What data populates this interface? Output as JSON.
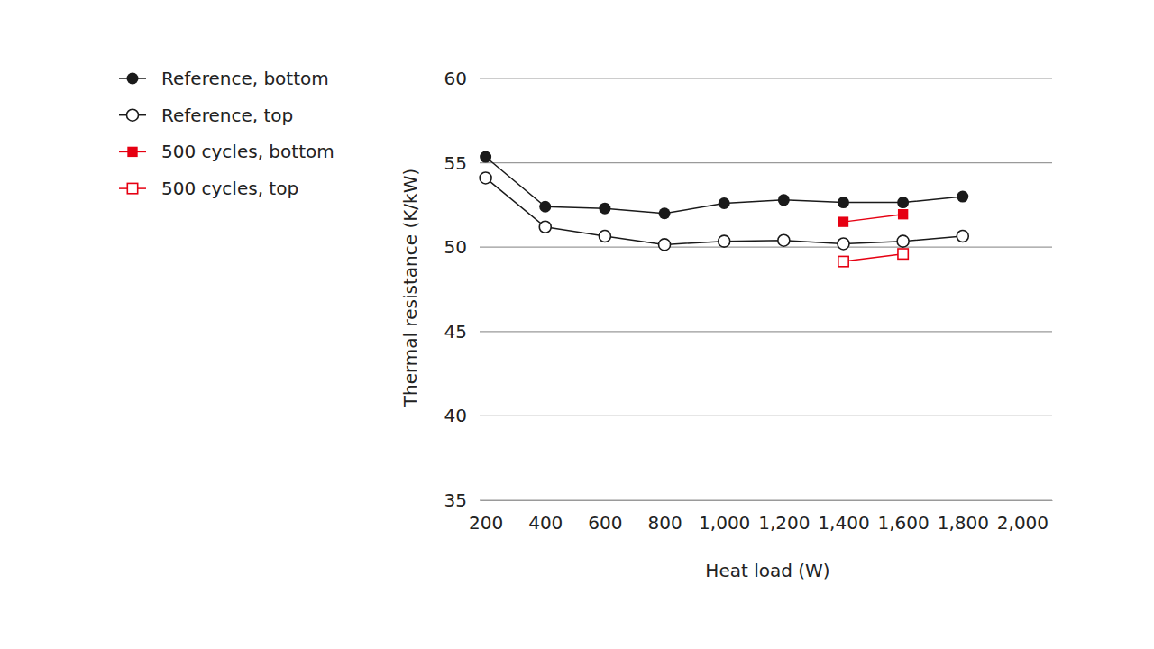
{
  "chart_data": {
    "type": "line",
    "x_label": "Heat load (W)",
    "y_label": "Thermal resistance (K/kW)",
    "xlim": [
      180,
      2100
    ],
    "xticks": [
      200,
      400,
      600,
      800,
      {
        "value": 1000,
        "label": "1,000"
      },
      {
        "value": 1200,
        "label": "1,200"
      },
      {
        "value": 1400,
        "label": "1,400"
      },
      {
        "value": 1600,
        "label": "1,600"
      },
      {
        "value": 1800,
        "label": "1,800"
      },
      {
        "value": 2000,
        "label": "2,000"
      }
    ],
    "ylim": [
      35,
      60
    ],
    "yticks": [
      35,
      40,
      45,
      50,
      55,
      60
    ],
    "grid": "y",
    "legend": "upper left",
    "series": [
      {
        "name": "Reference, bottom",
        "color": "#1a1a1a",
        "marker": "circle",
        "x": [
          200,
          400,
          600,
          800,
          1000,
          1200,
          1400,
          1600,
          1800
        ],
        "values": [
          55.35,
          52.4,
          52.3,
          52.0,
          52.6,
          52.8,
          52.65,
          52.65,
          53.0
        ]
      },
      {
        "name": "Reference, top",
        "color": "#1a1a1a",
        "marker": "circle-open",
        "x": [
          200,
          400,
          600,
          800,
          1000,
          1200,
          1400,
          1600,
          1800
        ],
        "values": [
          54.1,
          51.2,
          50.65,
          50.15,
          50.35,
          50.4,
          50.2,
          50.35,
          50.65
        ]
      },
      {
        "name": "500 cycles, bottom",
        "color": "#e60012",
        "marker": "square",
        "x": [
          1400,
          1600
        ],
        "values": [
          51.5,
          51.95
        ]
      },
      {
        "name": "500 cycles, top",
        "color": "#e60012",
        "marker": "square-open",
        "x": [
          1400,
          1600
        ],
        "values": [
          49.15,
          49.6
        ]
      }
    ]
  }
}
